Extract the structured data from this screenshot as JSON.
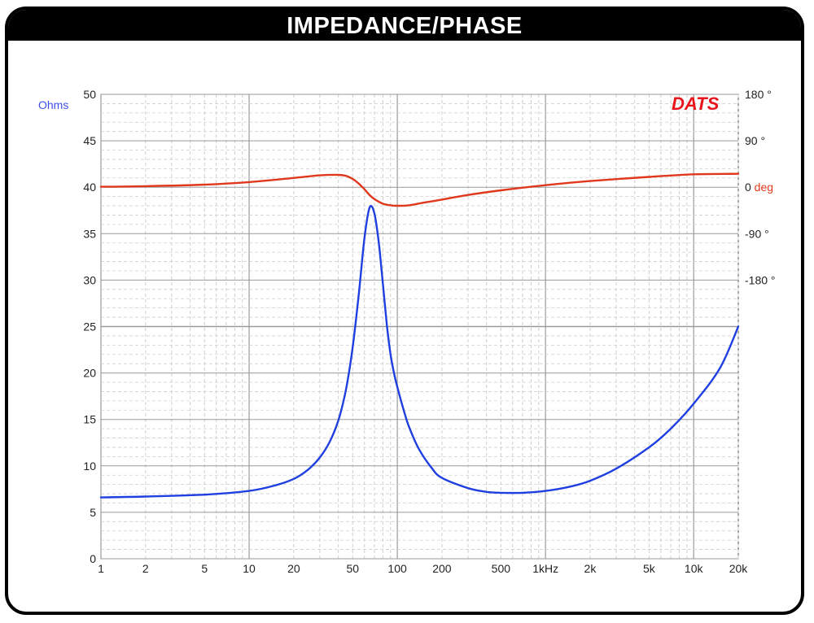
{
  "header": {
    "title": "IMPEDANCE/PHASE"
  },
  "logo": {
    "text": "DATS",
    "color": "#e8141c"
  },
  "colors": {
    "impedance": "#1f3fe0",
    "phase": "#e0381c",
    "grid_major": "#9a9a9a",
    "grid_minor": "#cfcfcf",
    "ohms_label": "#3d4fe6",
    "deg_label": "#e0381c"
  },
  "chart_data": {
    "type": "line",
    "x_scale": "log",
    "xlim": [
      1,
      20000
    ],
    "x_ticks": [
      {
        "value": 1,
        "label": "1"
      },
      {
        "value": 2,
        "label": "2"
      },
      {
        "value": 5,
        "label": "5"
      },
      {
        "value": 10,
        "label": "10"
      },
      {
        "value": 20,
        "label": "20"
      },
      {
        "value": 50,
        "label": "50"
      },
      {
        "value": 100,
        "label": "100"
      },
      {
        "value": 200,
        "label": "200"
      },
      {
        "value": 500,
        "label": "500"
      },
      {
        "value": 1000,
        "label": "1kHz"
      },
      {
        "value": 2000,
        "label": "2k"
      },
      {
        "value": 5000,
        "label": "5k"
      },
      {
        "value": 10000,
        "label": "10k"
      },
      {
        "value": 20000,
        "label": "20k"
      }
    ],
    "y_left": {
      "unit": "Ohms",
      "ylim": [
        0,
        50
      ],
      "ticks": [
        {
          "value": 0,
          "label": "0"
        },
        {
          "value": 5,
          "label": "5"
        },
        {
          "value": 10,
          "label": "10"
        },
        {
          "value": 15,
          "label": "15"
        },
        {
          "value": 20,
          "label": "20"
        },
        {
          "value": 25,
          "label": "25"
        },
        {
          "value": 30,
          "label": "30"
        },
        {
          "value": 35,
          "label": "35"
        },
        {
          "value": 40,
          "label": "40"
        },
        {
          "value": 45,
          "label": "45"
        },
        {
          "value": 50,
          "label": "50"
        }
      ]
    },
    "y_right": {
      "unit": "deg",
      "ticks": [
        {
          "value": 180,
          "label": "180 °"
        },
        {
          "value": 90,
          "label": "90 °"
        },
        {
          "value": 0,
          "label": "0"
        },
        {
          "value": -90,
          "label": "-90 °"
        },
        {
          "value": -180,
          "label": "-180 °"
        }
      ]
    },
    "series": [
      {
        "key": "impedance",
        "axis": "left",
        "x": [
          1,
          2,
          5,
          10,
          15,
          20,
          25,
          30,
          35,
          40,
          45,
          50,
          55,
          60,
          65,
          70,
          75,
          80,
          85,
          90,
          95,
          100,
          110,
          120,
          140,
          170,
          200,
          300,
          400,
          500,
          700,
          1000,
          1500,
          2000,
          3000,
          5000,
          7000,
          10000,
          15000,
          20000
        ],
        "values": [
          6.6,
          6.7,
          6.9,
          7.3,
          7.9,
          8.6,
          9.6,
          10.9,
          12.6,
          14.9,
          18.2,
          22.8,
          28.5,
          34.5,
          37.8,
          37.2,
          34.0,
          29.5,
          25.2,
          22.0,
          20.0,
          18.5,
          16.1,
          14.2,
          11.8,
          9.8,
          8.7,
          7.6,
          7.2,
          7.1,
          7.1,
          7.3,
          7.8,
          8.4,
          9.7,
          12.0,
          14.0,
          16.7,
          20.5,
          25.0
        ]
      },
      {
        "key": "phase",
        "axis": "right",
        "x": [
          1,
          2,
          5,
          10,
          20,
          30,
          40,
          45,
          50,
          55,
          60,
          65,
          70,
          80,
          90,
          100,
          120,
          150,
          200,
          300,
          500,
          1000,
          2000,
          5000,
          10000,
          20000
        ],
        "values": [
          1,
          2,
          5,
          10,
          18,
          23,
          24,
          22,
          16,
          7,
          -4,
          -15,
          -23,
          -32,
          -35,
          -36,
          -35,
          -30,
          -24,
          -15,
          -6,
          4,
          12,
          20,
          25,
          26
        ]
      }
    ]
  }
}
